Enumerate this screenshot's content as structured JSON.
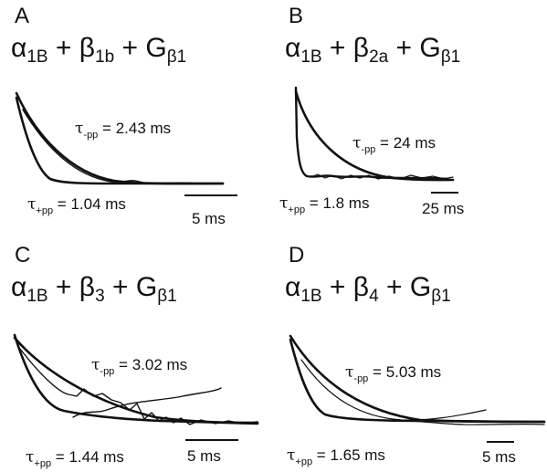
{
  "panels": [
    {
      "letter": "A",
      "formula": {
        "a": "α",
        "a_sub": "1B",
        "b": "β",
        "b_sub": "1b",
        "g": "G",
        "g_sub": "β1"
      },
      "tau_minus": {
        "symbol": "τ",
        "sub": "-pp",
        "value": "2.43 ms"
      },
      "tau_plus": {
        "symbol": "τ",
        "sub": "+pp",
        "value": "1.04 ms"
      },
      "scale_bar": "5 ms"
    },
    {
      "letter": "B",
      "formula": {
        "a": "α",
        "a_sub": "1B",
        "b": "β",
        "b_sub": "2a",
        "g": "G",
        "g_sub": "β1"
      },
      "tau_minus": {
        "symbol": "τ",
        "sub": "-pp",
        "value": "24 ms"
      },
      "tau_plus": {
        "symbol": "τ",
        "sub": "+pp",
        "value": "1.8 ms"
      },
      "scale_bar": "25 ms"
    },
    {
      "letter": "C",
      "formula": {
        "a": "α",
        "a_sub": "1B",
        "b": "β",
        "b_sub": "3",
        "g": "G",
        "g_sub": "β1"
      },
      "tau_minus": {
        "symbol": "τ",
        "sub": "-pp",
        "value": "3.02 ms"
      },
      "tau_plus": {
        "symbol": "τ",
        "sub": "+pp",
        "value": "1.44 ms"
      },
      "scale_bar": "5 ms"
    },
    {
      "letter": "D",
      "formula": {
        "a": "α",
        "a_sub": "1B",
        "b": "β",
        "b_sub": "4",
        "g": "G",
        "g_sub": "β1"
      },
      "tau_minus": {
        "symbol": "τ",
        "sub": "-pp",
        "value": "5.03 ms"
      },
      "tau_plus": {
        "symbol": "τ",
        "sub": "+pp",
        "value": "1.65 ms"
      },
      "scale_bar": "5 ms"
    }
  ]
}
